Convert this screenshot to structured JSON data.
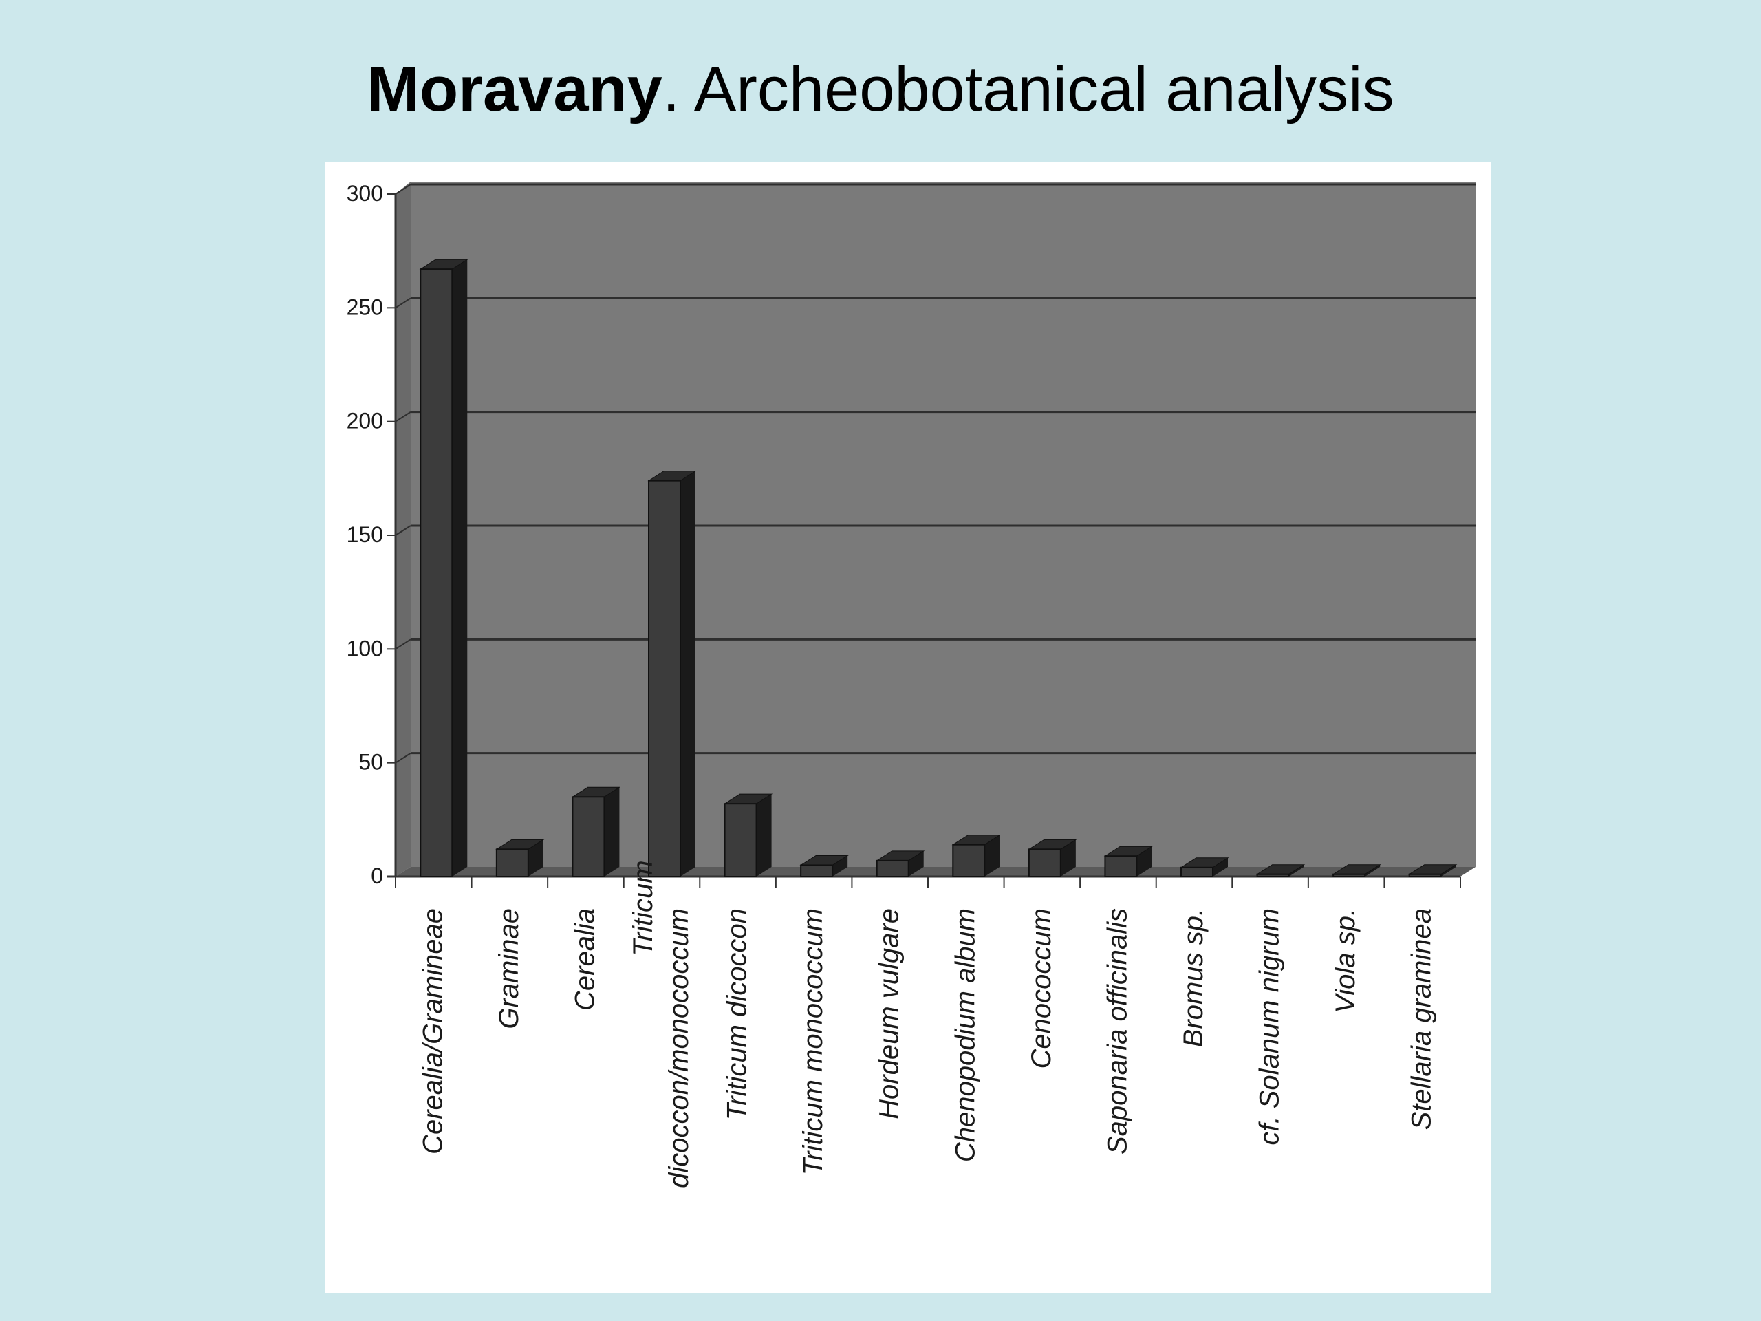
{
  "slide": {
    "title_bold": "Moravany",
    "title_rest": ". Archeobotanical analysis"
  },
  "chart_data": {
    "type": "bar",
    "title": "",
    "xlabel": "",
    "ylabel": "",
    "ylim": [
      0,
      300
    ],
    "yticks": [
      0,
      50,
      100,
      150,
      200,
      250,
      300
    ],
    "grid": true,
    "legend": "none",
    "three_d": true,
    "categories": [
      "Cerealia/Gramineae",
      "Graminae",
      "Cerealia",
      "Triticum dicoccon/monococcum",
      "Triticum dicoccon",
      "Triticum monococcum",
      "Hordeum vulgare",
      "Chenopodium album",
      "Cenococcum",
      "Saponaria officinalis",
      "Bromus sp.",
      "cf. Solanum nigrum",
      "Viola sp.",
      "Stellaria graminea"
    ],
    "category_lines": [
      [
        "Cerealia/Gramineae"
      ],
      [
        "Graminae"
      ],
      [
        "Cerealia"
      ],
      [
        "Triticum",
        "dicoccon/monococcum"
      ],
      [
        "Triticum dicoccon"
      ],
      [
        "Triticum monococcum"
      ],
      [
        "Hordeum vulgare"
      ],
      [
        "Chenopodium album"
      ],
      [
        "Cenococcum"
      ],
      [
        "Saponaria officinalis"
      ],
      [
        "Bromus sp."
      ],
      [
        "cf. Solanum nigrum"
      ],
      [
        "Viola sp."
      ],
      [
        "Stellaria graminea"
      ]
    ],
    "values": [
      267,
      12,
      35,
      174,
      32,
      5,
      7,
      14,
      12,
      9,
      4,
      1,
      1,
      1
    ],
    "colors": {
      "plot_background": "#7a7a7a",
      "bar_front": "#3c3c3c",
      "bar_top": "#2a2a2a",
      "bar_side": "#1a1a1a",
      "gridline": "#2e2e2e",
      "axis_text": "#1a1a1a"
    }
  }
}
